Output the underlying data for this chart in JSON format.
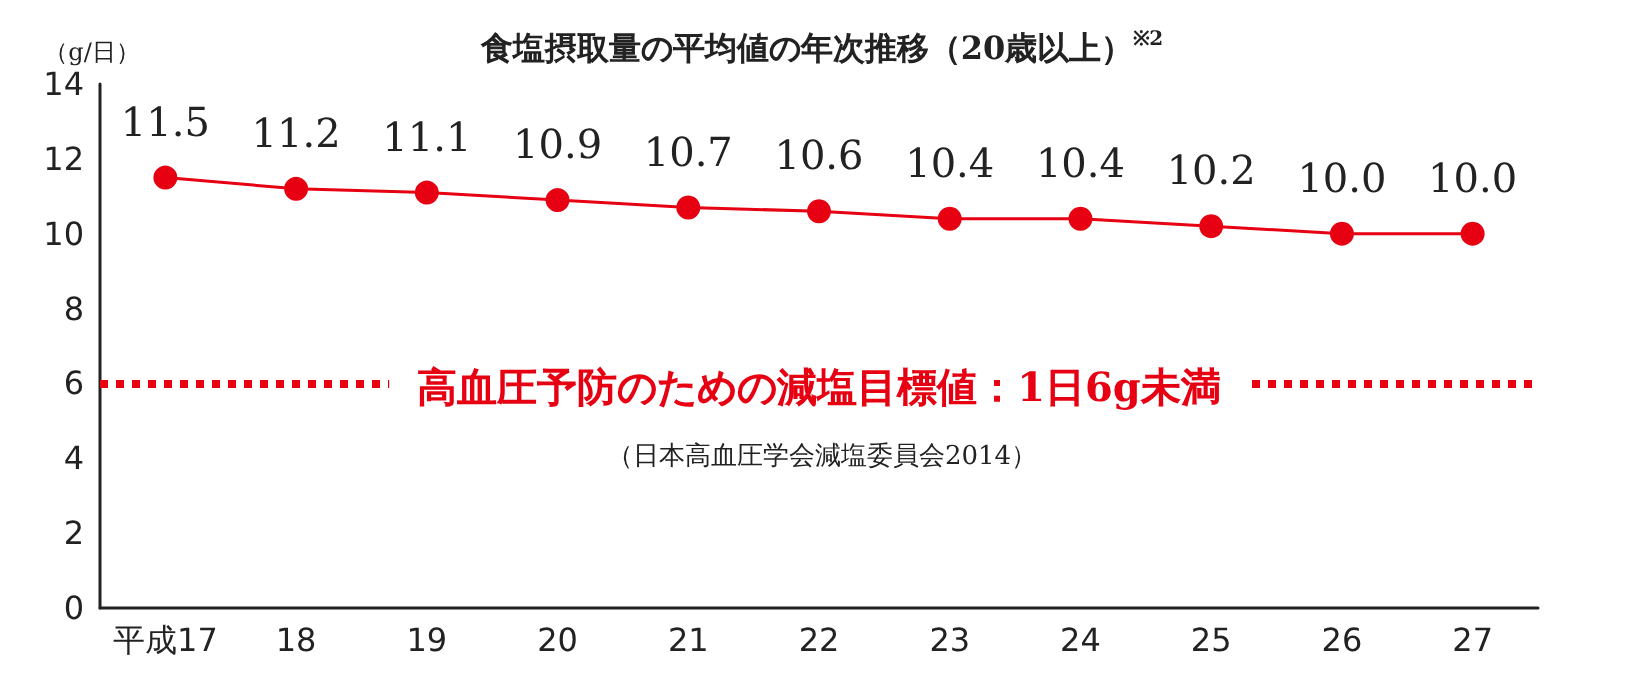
{
  "chart_data": {
    "type": "line",
    "title": "食塩摂取量の平均値の年次推移（20歳以上）$^{※2}$",
    "ylabel": "（g/日）",
    "categories": [
      "平成17",
      "18",
      "19",
      "20",
      "21",
      "22",
      "23",
      "24",
      "25",
      "26",
      "27"
    ],
    "series": [
      {
        "color": "#e60012",
        "values": [
          11.5,
          11.2,
          11.1,
          10.9,
          10.7,
          10.6,
          10.4,
          10.4,
          10.2,
          10.0,
          10.0
        ],
        "value_labels": [
          "11.5",
          "11.2",
          "11.1",
          "10.9",
          "10.7",
          "10.6",
          "10.4",
          "10.4",
          "10.2",
          "10.0",
          "10.0"
        ]
      }
    ],
    "ylim": [
      0,
      14
    ],
    "yticks": [
      0,
      2,
      4,
      6,
      8,
      10,
      12,
      14
    ],
    "grid": false,
    "marker": "circle",
    "line_style": "solid",
    "ref_lines": [
      {
        "axis": "y",
        "value": 6,
        "label": "高血圧予防のための減塩目標値：1日6g未満",
        "color": "#e60012",
        "line_style": "dotted"
      }
    ],
    "annotations": [
      "（日本高血圧学会減塩委員会2014）"
    ]
  }
}
